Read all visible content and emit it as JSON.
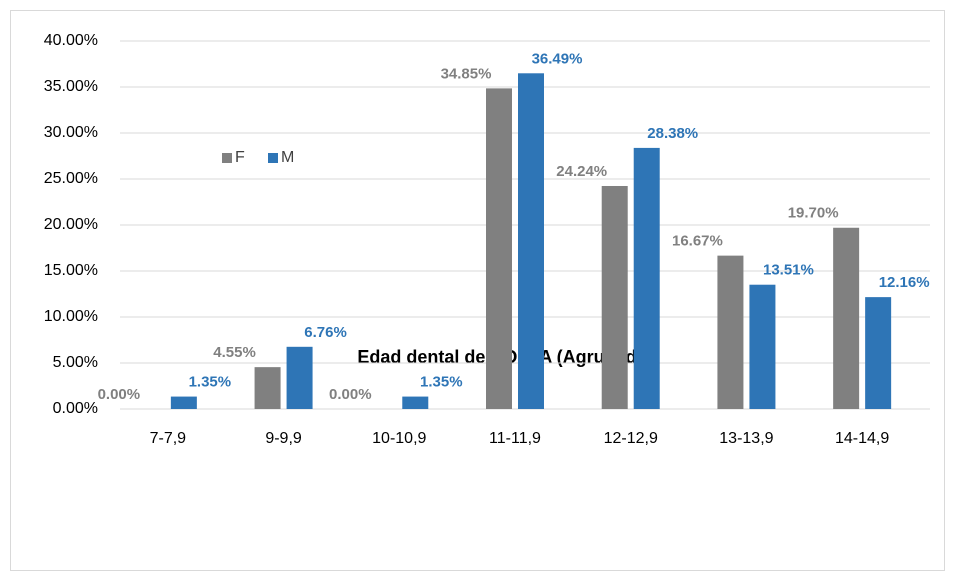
{
  "chart_data": {
    "type": "bar",
    "categories": [
      "7-7,9",
      "9-9,9",
      "10-10,9",
      "11-11,9",
      "12-12,9",
      "13-13,9",
      "14-14,9"
    ],
    "series": [
      {
        "name": "F",
        "color": "#808080",
        "values": [
          0,
          4.55,
          0,
          34.85,
          24.24,
          16.67,
          19.7
        ],
        "value_labels": [
          "0.00%",
          "4.55%",
          "0.00%",
          "34.85%",
          "24.24%",
          "16.67%",
          "19.70%"
        ]
      },
      {
        "name": "M",
        "color": "#2e75b6",
        "values": [
          1.35,
          6.76,
          1.35,
          36.49,
          28.38,
          13.51,
          12.16
        ],
        "value_labels": [
          "1.35%",
          "6.76%",
          "1.35%",
          "36.49%",
          "28.38%",
          "13.51%",
          "12.16%"
        ]
      }
    ],
    "ylim": [
      0,
      40
    ],
    "yticks": [
      {
        "value": 0,
        "label": "0.00%"
      },
      {
        "value": 5,
        "label": "5.00%"
      },
      {
        "value": 10,
        "label": "10.00%"
      },
      {
        "value": 15,
        "label": "15.00%"
      },
      {
        "value": 20,
        "label": "20.00%"
      },
      {
        "value": 25,
        "label": "25.00%"
      },
      {
        "value": 30,
        "label": "30.00%"
      },
      {
        "value": 35,
        "label": "35.00%"
      },
      {
        "value": 40,
        "label": "40.00%"
      }
    ],
    "grid": true,
    "x_label": "Edad dental de NOLLA (Agrupada)",
    "legend": "upper left"
  }
}
